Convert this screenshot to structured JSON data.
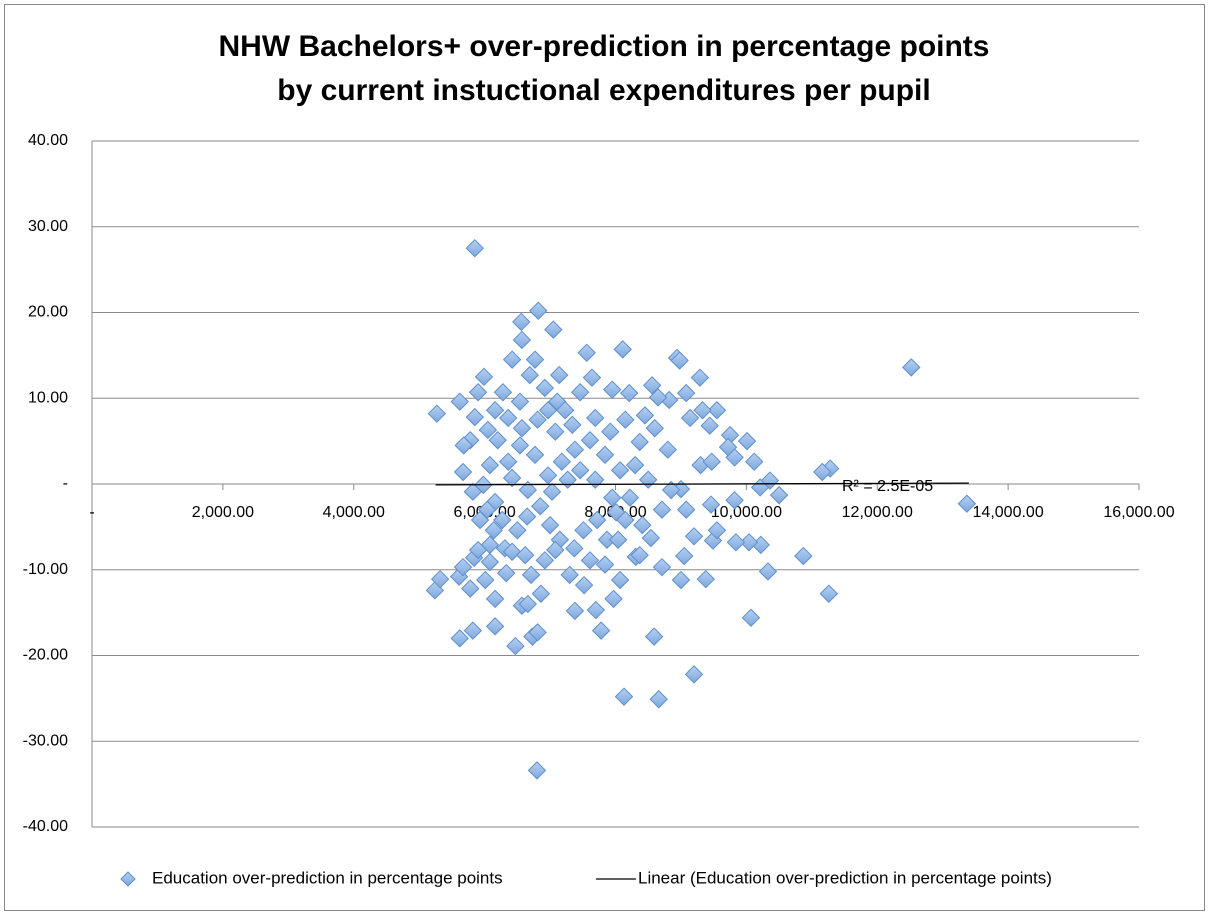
{
  "chart_data": {
    "type": "scatter",
    "title": [
      "NHW Bachelors+ over-prediction in percentage points",
      "by current instuctional expenditures per pupil"
    ],
    "annotation": "R² = 2.5E-05",
    "xlim": [
      0,
      16000
    ],
    "xticks": [
      {
        "value": 0,
        "label": "-"
      },
      {
        "value": 2000,
        "label": "2,000.00"
      },
      {
        "value": 4000,
        "label": "4,000.00"
      },
      {
        "value": 6000,
        "label": "6,000.00"
      },
      {
        "value": 8000,
        "label": "8,000.00"
      },
      {
        "value": 10000,
        "label": "10,000.00"
      },
      {
        "value": 12000,
        "label": "12,000.00"
      },
      {
        "value": 14000,
        "label": "14,000.00"
      },
      {
        "value": 16000,
        "label": "16,000.00"
      }
    ],
    "ylim": [
      -40,
      40
    ],
    "yticks": [
      {
        "value": -40,
        "label": "-40.00"
      },
      {
        "value": -30,
        "label": "-30.00"
      },
      {
        "value": -20,
        "label": "-20.00"
      },
      {
        "value": -10,
        "label": "-10.00"
      },
      {
        "value": 0,
        "label": "-"
      },
      {
        "value": 10,
        "label": "10.00"
      },
      {
        "value": 20,
        "label": "20.00"
      },
      {
        "value": 30,
        "label": "30.00"
      },
      {
        "value": 40,
        "label": "40.00"
      }
    ],
    "grid": true,
    "series": [
      {
        "name": "Education over-prediction in percentage points",
        "color": "#8fb6e6",
        "x": [
          5850,
          6820,
          6560,
          7050,
          6570,
          8110,
          7560,
          8940,
          8980,
          12520,
          6420,
          6770,
          5990,
          7140,
          9290,
          7640,
          5270,
          5620,
          9550,
          11280,
          11160,
          13370,
          10500,
          10210,
          10010,
          9750,
          10120,
          10360,
          10870,
          10330,
          10070,
          11260,
          10220,
          10040,
          9840,
          9490,
          9380,
          9000,
          9200,
          8660,
          8130,
          8590,
          6800,
          5240,
          5320,
          5610,
          5620,
          5820,
          6160,
          6160,
          6470,
          6730,
          6810,
          6860,
          6570,
          6660,
          7380,
          7700,
          7780,
          7970,
          5780,
          5670,
          5840,
          6080,
          6330,
          6710,
          7300,
          7520,
          8070,
          8310,
          8710,
          9050,
          9200,
          9460,
          9820,
          9550,
          9080,
          9000,
          9300,
          9470,
          9820,
          9720,
          9440,
          9330,
          9140,
          9080,
          8820,
          8650,
          8560,
          8210,
          7950,
          7460,
          7110,
          6970,
          6280,
          5900,
          5850,
          6050,
          6200,
          5780,
          5680,
          5670,
          6080,
          5980,
          5820,
          6160,
          5930,
          6140,
          6310,
          6500,
          6650,
          6850,
          7000,
          7150,
          7370,
          7510,
          7720,
          7870,
          8010,
          8220,
          8410,
          8540,
          8710,
          8850,
          8500,
          8300,
          8070,
          7840,
          7610,
          7380,
          7180,
          6970,
          6770,
          6540,
          6360,
          6420,
          6660,
          7030,
          7270,
          7460,
          7690,
          7950,
          8150,
          8370,
          8600,
          8800,
          8450,
          8150,
          7920,
          7690,
          7340,
          7080,
          6810,
          6570,
          6360,
          6160,
          6540,
          6690,
          6920,
          7230,
          6040,
          6270,
          6420,
          6620,
          6920,
          7080,
          7610,
          7840,
          8040,
          8370,
          6080,
          5900,
          6010
        ],
        "values": [
          27.5,
          20.2,
          18.9,
          18.0,
          16.8,
          15.7,
          15.3,
          14.7,
          14.4,
          13.6,
          14.5,
          14.5,
          12.5,
          12.7,
          12.4,
          12.4,
          8.2,
          9.6,
          8.6,
          1.8,
          1.4,
          -2.3,
          -1.3,
          -0.4,
          5.0,
          5.7,
          2.6,
          0.4,
          -8.4,
          -10.2,
          -15.6,
          -12.8,
          -7.1,
          -6.8,
          -6.8,
          -6.6,
          -11.1,
          -11.2,
          -22.2,
          -25.1,
          -24.8,
          -17.8,
          -33.4,
          -12.4,
          -11.1,
          -10.8,
          -18.0,
          -17.1,
          -13.4,
          -16.6,
          -18.9,
          -17.8,
          -17.3,
          -12.8,
          -14.2,
          -14.0,
          -14.8,
          -14.7,
          -17.1,
          -13.4,
          -12.2,
          -9.7,
          -8.6,
          -9.1,
          -10.4,
          -10.6,
          -10.6,
          -11.8,
          -11.2,
          -8.5,
          -9.7,
          -8.4,
          -6.1,
          -2.4,
          -1.9,
          -5.4,
          -3.0,
          -0.6,
          2.2,
          2.6,
          3.1,
          4.3,
          6.8,
          8.6,
          7.7,
          10.6,
          9.8,
          10.1,
          11.5,
          10.6,
          11.0,
          10.7,
          9.6,
          8.6,
          10.7,
          10.7,
          7.8,
          6.3,
          5.1,
          5.1,
          4.5,
          1.4,
          2.2,
          -0.1,
          -0.9,
          -2.1,
          -4.2,
          -5.4,
          -7.5,
          -5.4,
          -3.8,
          -2.6,
          -4.8,
          -6.5,
          -7.5,
          -5.4,
          -4.2,
          -6.5,
          -3.3,
          -1.6,
          -4.8,
          -6.3,
          -3.0,
          -0.7,
          0.5,
          2.2,
          1.6,
          3.4,
          5.1,
          4.0,
          2.6,
          1.0,
          3.4,
          4.5,
          2.6,
          0.7,
          -0.7,
          -0.9,
          0.5,
          1.6,
          0.5,
          -1.6,
          -4.2,
          4.9,
          6.5,
          4.0,
          8.0,
          7.5,
          6.1,
          7.7,
          6.9,
          6.1,
          7.5,
          6.5,
          7.7,
          8.6,
          9.6,
          12.7,
          11.2,
          8.6,
          -3.0,
          -4.2,
          -7.9,
          -8.3,
          -8.9,
          -7.7,
          -8.9,
          -9.4,
          -6.5,
          -8.3,
          -7.1,
          -7.7,
          -11.2
        ]
      },
      {
        "name": "Linear (Education over-prediction in percentage points)",
        "type": "line",
        "color": "#000000",
        "x": [
          5250,
          13400
        ],
        "values": [
          -0.1,
          0.1
        ]
      }
    ]
  }
}
